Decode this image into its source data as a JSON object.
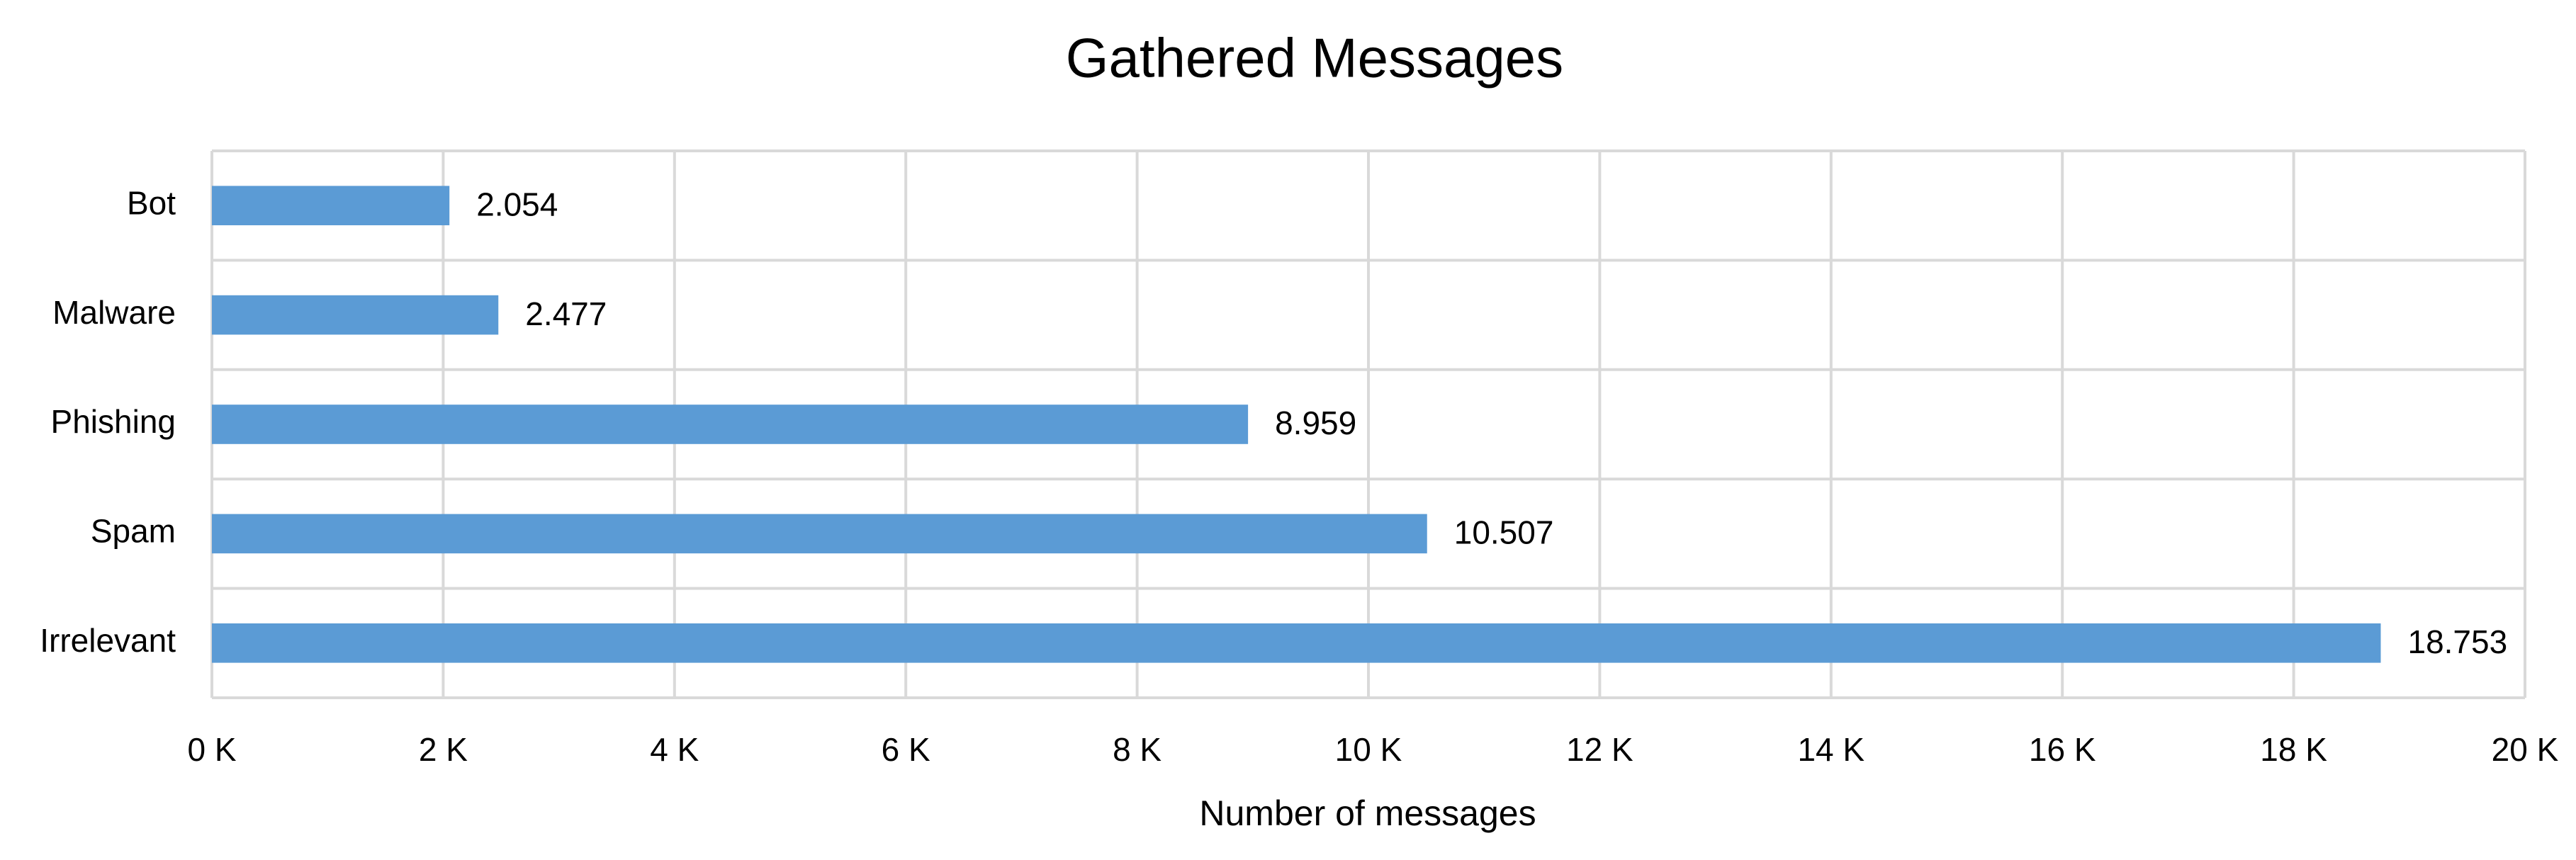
{
  "chart_data": {
    "type": "bar",
    "orientation": "horizontal",
    "title": "Gathered Messages",
    "x_label": "Number  of messages",
    "categories": [
      "Bot",
      "Malware",
      "Phishing",
      "Spam",
      "Irrelevant"
    ],
    "values": [
      2054,
      2477,
      8959,
      10507,
      18753
    ],
    "value_labels": [
      "2.054",
      "2.477",
      "8.959",
      "10.507",
      "18.753"
    ],
    "color": "#5b9bd5",
    "xlim": [
      0,
      20000
    ],
    "xticks": [
      {
        "value": 0,
        "label": "0 K"
      },
      {
        "value": 2000,
        "label": "2 K"
      },
      {
        "value": 4000,
        "label": "4 K"
      },
      {
        "value": 6000,
        "label": "6 K"
      },
      {
        "value": 8000,
        "label": "8 K"
      },
      {
        "value": 10000,
        "label": "10 K"
      },
      {
        "value": 12000,
        "label": "12 K"
      },
      {
        "value": 14000,
        "label": "14 K"
      },
      {
        "value": 16000,
        "label": "16 K"
      },
      {
        "value": 18000,
        "label": "18 K"
      },
      {
        "value": 20000,
        "label": "20 K"
      }
    ],
    "grid": true
  }
}
